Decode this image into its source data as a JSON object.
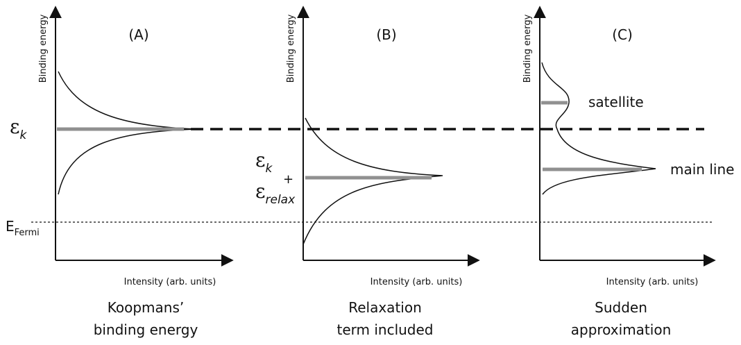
{
  "panels": [
    {
      "label": "(A)",
      "y_axis": "Binding energy",
      "x_axis": "Intensity (arb. units)",
      "caption": [
        "Koopmans’",
        "binding energy"
      ]
    },
    {
      "label": "(B)",
      "y_axis": "Binding energy",
      "x_axis": "Intensity (arb. units)",
      "caption": [
        "Relaxation",
        "term included"
      ]
    },
    {
      "label": "(C)",
      "y_axis": "Binding energy",
      "x_axis": "Intensity (arb. units)",
      "caption": [
        "Sudden",
        "approximation"
      ]
    }
  ],
  "annotations": {
    "epsilon_k": {
      "symbol": "ε",
      "subscript": "k"
    },
    "fermi": {
      "symbol": "E",
      "subscript": "Fermi"
    },
    "relax": {
      "symbol1": "ε",
      "sub1": "k",
      "plus": "+",
      "symbol2": "ε",
      "sub2": "relax"
    },
    "satellite": "satellite",
    "main_line": "main line"
  }
}
